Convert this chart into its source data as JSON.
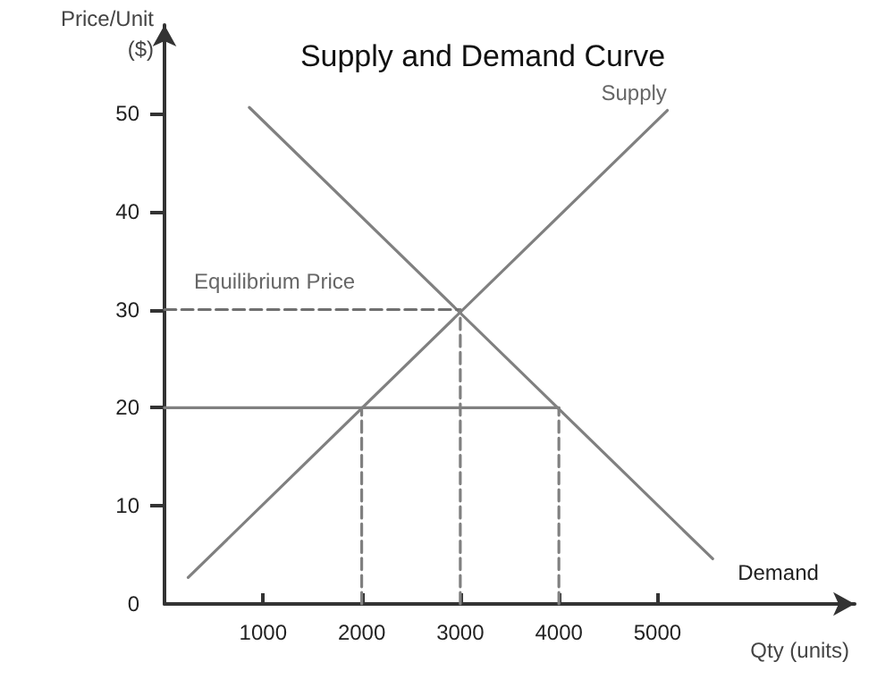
{
  "chart_data": {
    "type": "line",
    "title": "Supply and Demand Curve",
    "xlabel": "Qty (units)",
    "ylabel": "Price/Unit\n($)",
    "xlim": [
      0,
      7000
    ],
    "ylim": [
      0,
      59
    ],
    "xticks": [
      1000,
      2000,
      3000,
      4000,
      5000
    ],
    "yticks": [
      {
        "value": 0,
        "label": "0"
      },
      10,
      20,
      30,
      40,
      50
    ],
    "grid": false,
    "legend": false,
    "marker": "none",
    "annotations": [
      {
        "text": "Equilibrium Price",
        "x": 300,
        "y": 30
      }
    ],
    "series": [
      {
        "name": "Supply",
        "color": "#808080",
        "x": [
          240,
          5100
        ],
        "values": [
          2.7,
          50.3
        ]
      },
      {
        "name": "Demand",
        "color": "#808080",
        "x": [
          860,
          5560
        ],
        "values": [
          50.6,
          4.6
        ]
      },
      {
        "color": "#808080",
        "x": [
          0,
          4000
        ],
        "values": [
          20,
          20
        ],
        "line_style": "solid"
      },
      {
        "color": "#707070",
        "x": [
          0,
          3000
        ],
        "values": [
          30,
          30
        ],
        "line_style": "dashed"
      },
      {
        "color": "#808080",
        "x": [
          2000,
          2000
        ],
        "values": [
          0,
          20
        ],
        "line_style": "dashed"
      },
      {
        "color": "#808080",
        "x": [
          3000,
          3000
        ],
        "values": [
          0,
          30
        ],
        "line_style": "dashed"
      },
      {
        "color": "#808080",
        "x": [
          4000,
          4000
        ],
        "values": [
          0,
          20
        ],
        "line_style": "dashed"
      }
    ]
  }
}
